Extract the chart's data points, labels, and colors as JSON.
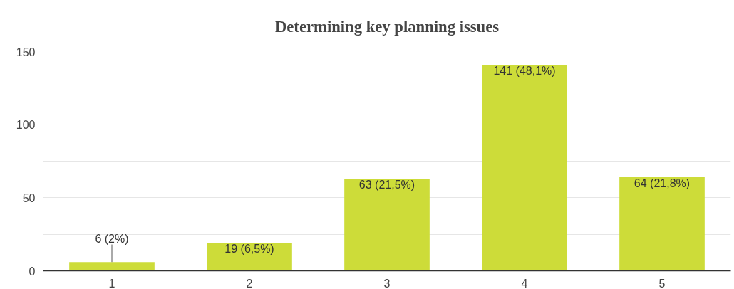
{
  "chart_data": {
    "type": "bar",
    "title": "Determining key planning issues",
    "categories": [
      "1",
      "2",
      "3",
      "4",
      "5"
    ],
    "values": [
      6,
      19,
      63,
      141,
      64
    ],
    "value_labels": [
      "6 (2%)",
      "19 (6,5%)",
      "63 (21,5%)",
      "141 (48,1%)",
      "64 (21,8%)"
    ],
    "color": "#cddc39",
    "ylim": [
      0,
      150
    ],
    "yticks": [
      0,
      {
        "value": 25,
        "label": null
      },
      50,
      {
        "value": 75,
        "label": null
      },
      100,
      {
        "value": 125,
        "label": null
      },
      150
    ],
    "grid": "y"
  }
}
